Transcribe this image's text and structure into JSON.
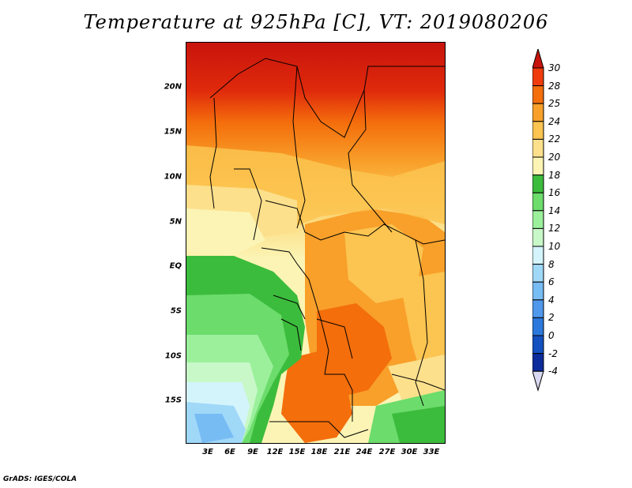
{
  "title": "Temperature at 925hPa [C], VT: 2019080206",
  "footer": "GrADS: IGES/COLA",
  "axes": {
    "x_ticks": [
      "3E",
      "6E",
      "9E",
      "12E",
      "15E",
      "18E",
      "21E",
      "24E",
      "27E",
      "30E",
      "33E"
    ],
    "y_ticks": [
      "20N",
      "15N",
      "10N",
      "5N",
      "EQ",
      "5S",
      "10S",
      "15S"
    ]
  },
  "colorbar": {
    "labels": [
      "30",
      "28",
      "25",
      "24",
      "22",
      "20",
      "18",
      "16",
      "14",
      "12",
      "10",
      "8",
      "6",
      "4",
      "2",
      "0",
      "-2",
      "-4"
    ],
    "colors": [
      "#c8140c",
      "#f03c0c",
      "#f46e0c",
      "#f8a02a",
      "#fcc450",
      "#fce08c",
      "#fcf4b4",
      "#3cbc3c",
      "#6cdc6c",
      "#9cf09c",
      "#c8f8c8",
      "#d4f4fc",
      "#a0d8f8",
      "#78bcf4",
      "#5098ec",
      "#2c78dc",
      "#1450c0",
      "#0c2c9c",
      "#081470"
    ],
    "top_arrow_color": "#c8140c",
    "bottom_arrow_color": "#d8d8f0"
  }
}
